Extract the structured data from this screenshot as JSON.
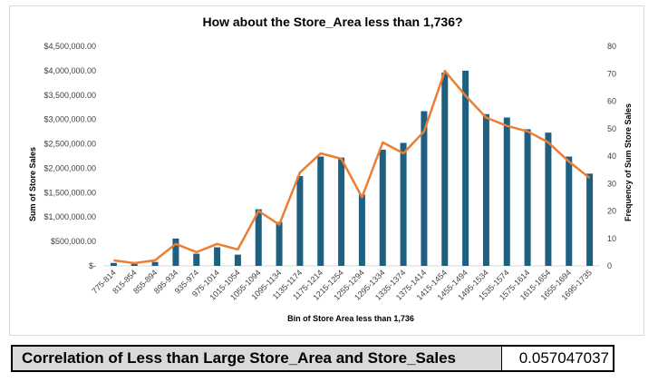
{
  "chart_data": {
    "type": "bar+line",
    "title": "How about the Store_Area less than 1,736?",
    "xlabel": "Bin of Store Area less than 1,736",
    "ylabel": "Sum of Store Sales",
    "y2label": "Frequency of Sum Store Sales",
    "categories": [
      "775-814",
      "815-854",
      "855-894",
      "895-934",
      "935-974",
      "975-1014",
      "1015-1054",
      "1055-1094",
      "1095-1134",
      "1135-1174",
      "1175-1214",
      "1215-1254",
      "1255-1294",
      "1295-1334",
      "1335-1374",
      "1375-1414",
      "1415-1454",
      "1455-1494",
      "1495-1534",
      "1535-1574",
      "1575-1614",
      "1615-1654",
      "1655-1694",
      "1695-1735"
    ],
    "series": [
      {
        "type": "bar",
        "axis": "left",
        "color": "#1f5f7f",
        "values": [
          60000,
          40000,
          80000,
          560000,
          250000,
          380000,
          230000,
          1160000,
          900000,
          1840000,
          2240000,
          2220000,
          1460000,
          2380000,
          2520000,
          3170000,
          3960000,
          4000000,
          3110000,
          3040000,
          2800000,
          2730000,
          2240000,
          1890000
        ]
      },
      {
        "type": "line",
        "axis": "right",
        "color": "#ed7d31",
        "values": [
          2,
          1,
          2,
          8,
          5,
          8,
          6,
          20,
          15,
          34,
          41,
          39,
          25,
          45,
          41,
          49,
          71,
          62,
          54,
          51,
          49,
          45,
          38,
          32
        ]
      }
    ],
    "ylim": [
      0,
      4500000
    ],
    "y2lim": [
      0,
      80
    ],
    "yticks": [
      "$-",
      "$500,000.00",
      "$1,000,000.00",
      "$1,500,000.00",
      "$2,000,000.00",
      "$2,500,000.00",
      "$3,000,000.00",
      "$3,500,000.00",
      "$4,000,000.00",
      "$4,500,000.00"
    ],
    "y2ticks": [
      "0",
      "10",
      "20",
      "30",
      "40",
      "50",
      "60",
      "70",
      "80"
    ],
    "grid": false,
    "legend": "none"
  },
  "correlation": {
    "label": "Correlation of Less than Large Store_Area and Store_Sales",
    "value": "0.057047037"
  }
}
